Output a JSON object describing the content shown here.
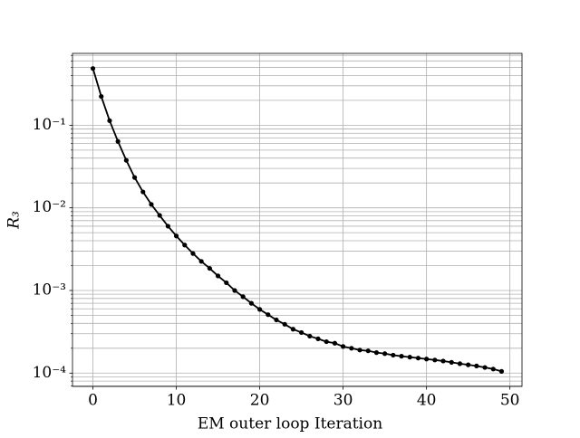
{
  "chart_data": {
    "type": "line",
    "xlabel": "EM outer loop Iteration",
    "ylabel": "R₃",
    "x": [
      0,
      1,
      2,
      3,
      4,
      5,
      6,
      7,
      8,
      9,
      10,
      11,
      12,
      13,
      14,
      15,
      16,
      17,
      18,
      19,
      20,
      21,
      22,
      23,
      24,
      25,
      26,
      27,
      28,
      29,
      30,
      31,
      32,
      33,
      34,
      35,
      36,
      37,
      38,
      39,
      40,
      41,
      42,
      43,
      44,
      45,
      46,
      47,
      48,
      49
    ],
    "values": [
      0.486,
      0.223,
      0.1135,
      0.0637,
      0.0376,
      0.0233,
      0.0156,
      0.011,
      0.0081,
      0.006,
      0.00457,
      0.00355,
      0.0028,
      0.00225,
      0.00185,
      0.0015,
      0.00124,
      0.001,
      0.00084,
      0.0007,
      0.00059,
      0.00051,
      0.00044,
      0.00039,
      0.00034,
      0.00031,
      0.00028,
      0.00026,
      0.00024,
      0.00023,
      0.00021,
      0.0002,
      0.00019,
      0.000186,
      0.000177,
      0.000172,
      0.000165,
      0.00016,
      0.000156,
      0.000152,
      0.000148,
      0.000144,
      0.00014,
      0.000135,
      0.00013,
      0.000126,
      0.000122,
      0.000117,
      0.000112,
      0.000105
    ],
    "color": "#000000",
    "xlim": [
      -2.45,
      51.45
    ],
    "xticks": [
      0,
      10,
      20,
      30,
      40,
      50
    ],
    "ylim": [
      6.9e-05,
      0.74
    ],
    "yscale": "log",
    "yticks": [
      {
        "value": 0.0001,
        "label": "10⁻⁴"
      },
      {
        "value": 0.001,
        "label": "10⁻³"
      },
      {
        "value": 0.01,
        "label": "10⁻²"
      },
      {
        "value": 0.1,
        "label": "10⁻¹"
      }
    ],
    "yminorticks": [
      7e-05,
      8e-05,
      9e-05,
      0.0002,
      0.0003,
      0.0004,
      0.0005,
      0.0006,
      0.0007,
      0.0008,
      0.0009,
      0.002,
      0.003,
      0.004,
      0.005,
      0.006,
      0.007,
      0.008,
      0.009,
      0.02,
      0.03,
      0.04,
      0.05,
      0.06,
      0.07,
      0.08,
      0.09,
      0.2,
      0.3,
      0.4,
      0.5,
      0.6,
      0.7
    ],
    "grid": true
  }
}
